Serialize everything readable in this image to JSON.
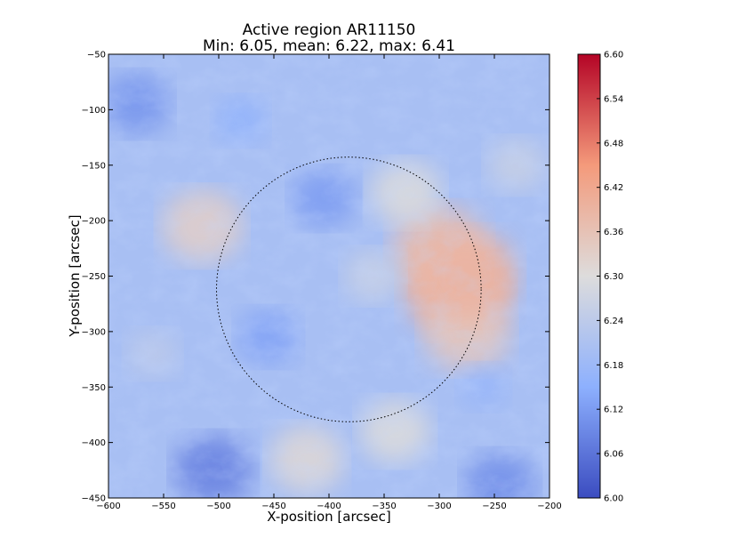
{
  "chart_data": {
    "type": "heatmap",
    "title": "Active region AR11150",
    "subtitle": "Min: 6.05, mean: 6.22, max: 6.41",
    "xlabel": "X-position [arcsec]",
    "ylabel": "Y-position [arcsec]",
    "xlim": [
      -600,
      -200
    ],
    "ylim": [
      -450,
      -50
    ],
    "x_ticks": [
      -600,
      -550,
      -500,
      -450,
      -400,
      -350,
      -300,
      -250,
      -200
    ],
    "y_ticks": [
      -50,
      -100,
      -150,
      -200,
      -250,
      -300,
      -350,
      -400,
      -450
    ],
    "stats": {
      "min": 6.05,
      "mean": 6.22,
      "max": 6.41
    },
    "colorbar": {
      "colormap": "coolwarm",
      "range": [
        6.0,
        6.6
      ],
      "ticks": [
        "6.00",
        "6.06",
        "6.12",
        "6.18",
        "6.24",
        "6.30",
        "6.36",
        "6.42",
        "6.48",
        "6.54",
        "6.60"
      ],
      "colors": {
        "low": "#3b4cc0",
        "mid_low": "#8db0fe",
        "mid": "#dddcdc",
        "mid_high": "#f49a7b",
        "high": "#b40426"
      }
    },
    "circle": {
      "center_x": -382,
      "center_y": -262,
      "radius": 120,
      "style": "dotted",
      "color": "#000000"
    },
    "features": [
      {
        "x": -285,
        "y": -260,
        "value": 6.4
      },
      {
        "x": -300,
        "y": -225,
        "value": 6.37
      },
      {
        "x": -275,
        "y": -300,
        "value": 6.35
      },
      {
        "x": -330,
        "y": -175,
        "value": 6.3
      },
      {
        "x": -420,
        "y": -415,
        "value": 6.31
      },
      {
        "x": -340,
        "y": -390,
        "value": 6.3
      },
      {
        "x": -515,
        "y": -205,
        "value": 6.33
      },
      {
        "x": -275,
        "y": -250,
        "value": 6.39
      },
      {
        "x": -405,
        "y": -180,
        "value": 6.12
      },
      {
        "x": -455,
        "y": -305,
        "value": 6.13
      },
      {
        "x": -480,
        "y": -110,
        "value": 6.16
      },
      {
        "x": -575,
        "y": -95,
        "value": 6.11
      },
      {
        "x": -505,
        "y": -425,
        "value": 6.08
      },
      {
        "x": -245,
        "y": -438,
        "value": 6.1
      },
      {
        "x": -360,
        "y": -250,
        "value": 6.26
      },
      {
        "x": -230,
        "y": -150,
        "value": 6.26
      },
      {
        "x": -560,
        "y": -320,
        "value": 6.24
      },
      {
        "x": -260,
        "y": -350,
        "value": 6.17
      }
    ],
    "background_value": 6.2
  }
}
